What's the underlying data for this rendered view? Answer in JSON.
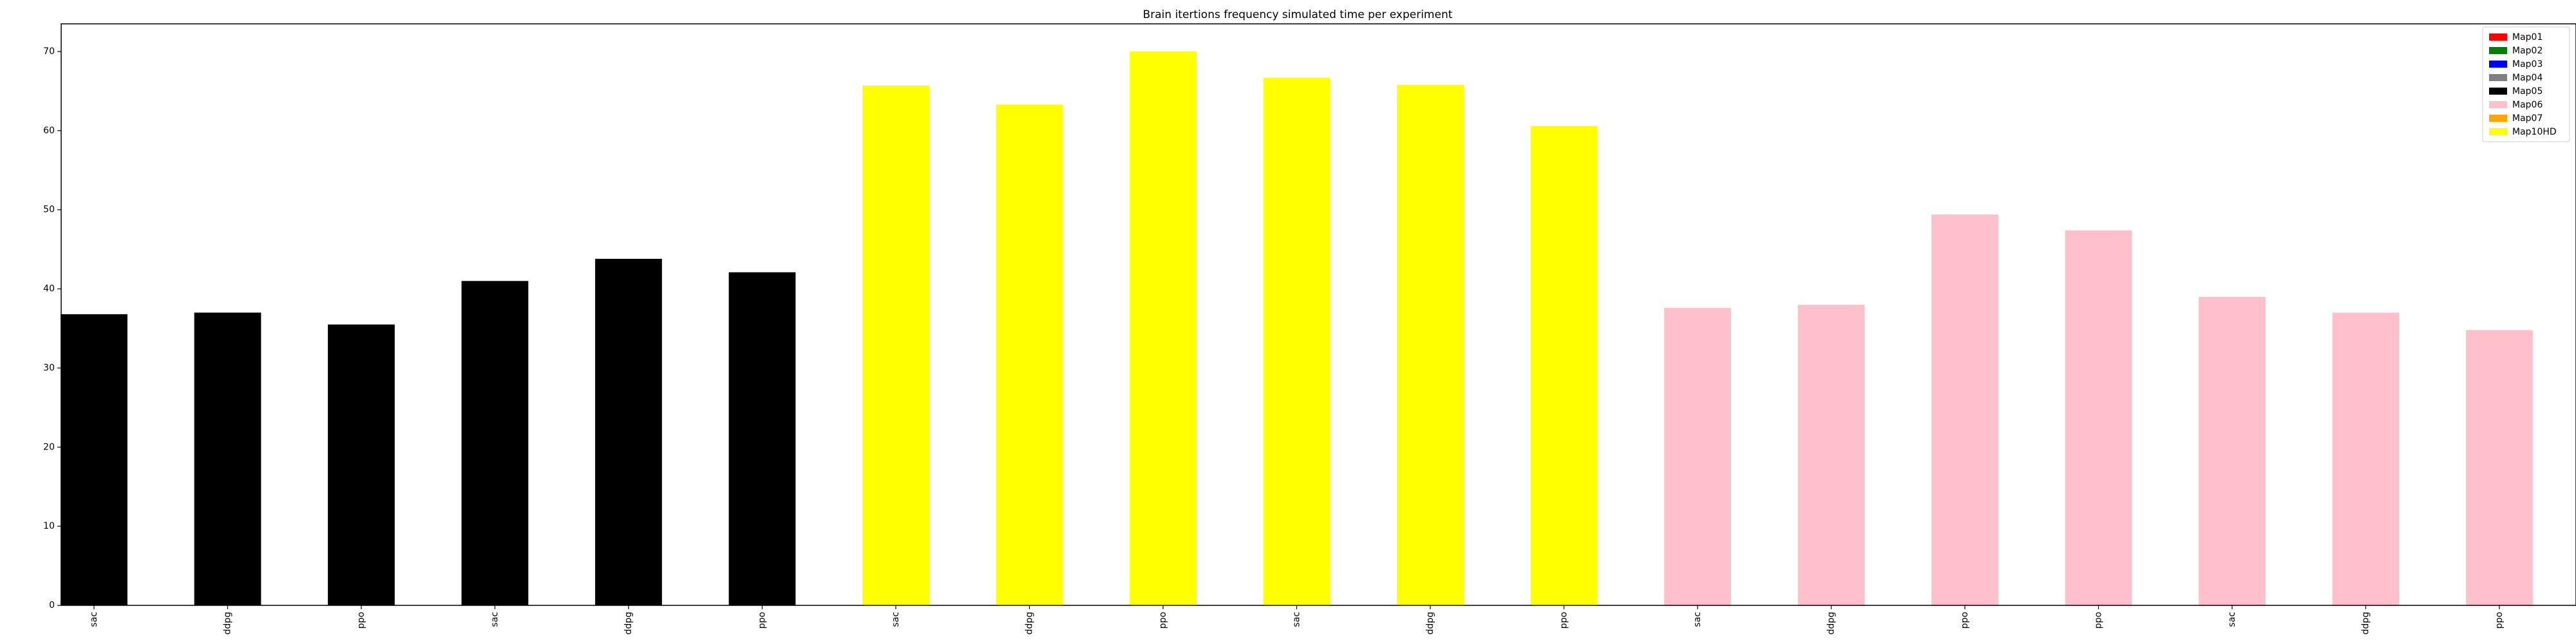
{
  "chart_data": {
    "type": "bar",
    "title": "Brain itertions frequency simulated time per experiment",
    "xlabel": "",
    "ylabel": "",
    "ylim": [
      0,
      73.5
    ],
    "yticks": [
      0,
      10,
      20,
      30,
      40,
      50,
      60,
      70
    ],
    "grid": false,
    "legend_position": "top-right",
    "legend": [
      {
        "name": "Map01",
        "color": "#ff0000"
      },
      {
        "name": "Map02",
        "color": "#008000"
      },
      {
        "name": "Map03",
        "color": "#0000ff"
      },
      {
        "name": "Map04",
        "color": "#808080"
      },
      {
        "name": "Map05",
        "color": "#000000"
      },
      {
        "name": "Map06",
        "color": "#ffc0cb"
      },
      {
        "name": "Map07",
        "color": "#ffa500"
      },
      {
        "name": "Map10HD",
        "color": "#ffff00"
      }
    ],
    "categories": [
      "sac",
      "ddpg",
      "ppo",
      "sac",
      "ddpg",
      "ppo",
      "sac",
      "ddpg",
      "ppo",
      "sac",
      "ddpg",
      "ppo",
      "sac",
      "ddpg",
      "ppo",
      "ppo",
      "sac",
      "ddpg",
      "ppo"
    ],
    "values": [
      36.8,
      37.0,
      35.5,
      41.0,
      43.8,
      42.1,
      65.7,
      63.3,
      70.0,
      66.7,
      65.8,
      60.6,
      37.6,
      38.0,
      49.4,
      47.4,
      39.0,
      37.0,
      34.8
    ],
    "bar_colors": [
      "#000000",
      "#000000",
      "#000000",
      "#000000",
      "#000000",
      "#000000",
      "#ffff00",
      "#ffff00",
      "#ffff00",
      "#ffff00",
      "#ffff00",
      "#ffff00",
      "#ffc0cb",
      "#ffc0cb",
      "#ffc0cb",
      "#ffc0cb",
      "#ffc0cb",
      "#ffc0cb",
      "#ffc0cb"
    ]
  }
}
